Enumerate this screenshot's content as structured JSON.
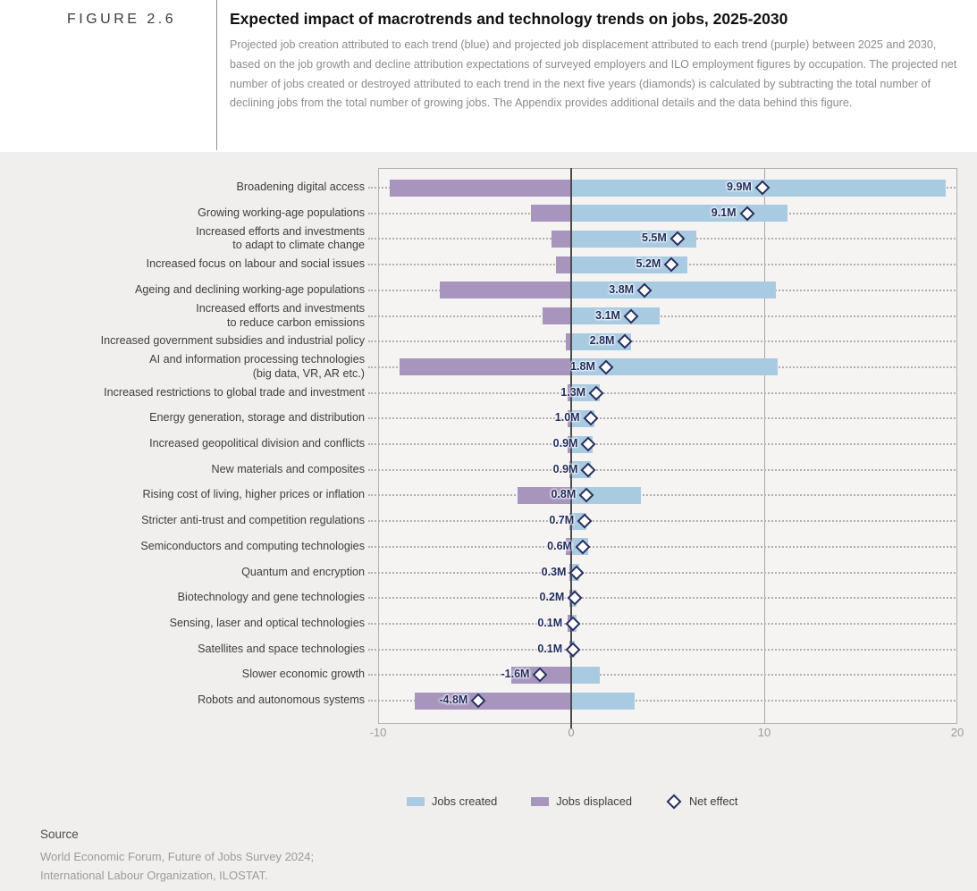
{
  "header": {
    "figure_label": "FIGURE 2.6",
    "title": "Expected impact of macrotrends and technology trends on jobs, 2025-2030",
    "description": "Projected job creation attributed to each trend (blue) and projected job displacement attributed to each trend (purple) between 2025 and 2030, based on the job growth and decline attribution expectations of surveyed employers and ILO employment figures by occupation. The projected net number of jobs created or destroyed attributed to each trend in the next five years (diamonds) is calculated by subtracting the total number of declining jobs from the total number of growing jobs. The Appendix provides additional details and the data behind this figure."
  },
  "colors": {
    "jobs_created": "#a9cbe2",
    "jobs_displaced": "#a795be",
    "net_navy": "#252e5e",
    "chart_background": "#f0efed",
    "plot_background": "#f5f4f2"
  },
  "chart_data": {
    "type": "bar",
    "orientation": "horizontal-diverging",
    "unit": "millions of jobs",
    "xlim": [
      -10,
      20
    ],
    "x_ticks": [
      -10,
      0,
      10,
      20
    ],
    "grid": "vertical lines at 0 and 10, dotted row leaders",
    "legend_position": "bottom-center",
    "categories": [
      {
        "lines": [
          "Broadening digital access"
        ]
      },
      {
        "lines": [
          "Growing working-age populations"
        ]
      },
      {
        "lines": [
          "Increased efforts and investments",
          "to adapt to climate change"
        ]
      },
      {
        "lines": [
          "Increased focus on labour and social issues"
        ]
      },
      {
        "lines": [
          "Ageing and declining working-age populations"
        ]
      },
      {
        "lines": [
          "Increased efforts and investments",
          "to reduce carbon emissions"
        ]
      },
      {
        "lines": [
          "Increased government subsidies and industrial policy"
        ]
      },
      {
        "lines": [
          "AI and information processing technologies",
          "(big data, VR, AR etc.)"
        ]
      },
      {
        "lines": [
          "Increased restrictions to global trade and investment"
        ]
      },
      {
        "lines": [
          "Energy generation, storage and distribution"
        ]
      },
      {
        "lines": [
          "Increased geopolitical division and conflicts"
        ]
      },
      {
        "lines": [
          "New materials and composites"
        ]
      },
      {
        "lines": [
          "Rising cost of living, higher prices or inflation"
        ]
      },
      {
        "lines": [
          "Stricter anti-trust and competition regulations"
        ]
      },
      {
        "lines": [
          "Semiconductors and computing technologies"
        ]
      },
      {
        "lines": [
          "Quantum and encryption"
        ]
      },
      {
        "lines": [
          "Biotechnology and gene technologies"
        ]
      },
      {
        "lines": [
          "Sensing, laser and optical technologies"
        ]
      },
      {
        "lines": [
          "Satellites and space technologies"
        ]
      },
      {
        "lines": [
          "Slower economic growth"
        ]
      },
      {
        "lines": [
          "Robots and autonomous systems"
        ]
      }
    ],
    "series": [
      {
        "name": "Jobs created",
        "color": "#a9cbe2",
        "values": [
          19.4,
          11.2,
          6.5,
          6.0,
          10.6,
          4.6,
          3.1,
          10.7,
          1.5,
          1.2,
          1.1,
          1.0,
          3.6,
          0.8,
          0.9,
          0.4,
          0.3,
          0.3,
          0.2,
          1.5,
          3.3
        ]
      },
      {
        "name": "Jobs displaced",
        "color": "#a795be",
        "values": [
          -9.4,
          -2.1,
          -1.0,
          -0.8,
          -6.8,
          -1.5,
          -0.3,
          -8.9,
          -0.2,
          -0.2,
          -0.2,
          -0.1,
          -2.8,
          -0.1,
          -0.3,
          -0.1,
          -0.1,
          -0.2,
          -0.1,
          -3.1,
          -8.1
        ]
      },
      {
        "name": "Net effect",
        "marker": "diamond",
        "values": [
          9.9,
          9.1,
          5.5,
          5.2,
          3.8,
          3.1,
          2.8,
          1.8,
          1.3,
          1.0,
          0.9,
          0.9,
          0.8,
          0.7,
          0.6,
          0.3,
          0.2,
          0.1,
          0.1,
          -1.6,
          -4.8
        ],
        "labels": [
          "9.9M",
          "9.1M",
          "5.5M",
          "5.2M",
          "3.8M",
          "3.1M",
          "2.8M",
          "1.8M",
          "1.3M",
          "1.0M",
          "0.9M",
          "0.9M",
          "0.8M",
          "0.7M",
          "0.6M",
          "0.3M",
          "0.2M",
          "0.1M",
          "0.1M",
          "-1.6M",
          "-4.8M"
        ]
      }
    ]
  },
  "legend": {
    "created": "Jobs created",
    "displaced": "Jobs displaced",
    "net": "Net effect"
  },
  "source": {
    "label": "Source",
    "line1": "World Economic Forum, Future of Jobs Survey 2024;",
    "line2": "International Labour Organization, ILOSTAT."
  }
}
